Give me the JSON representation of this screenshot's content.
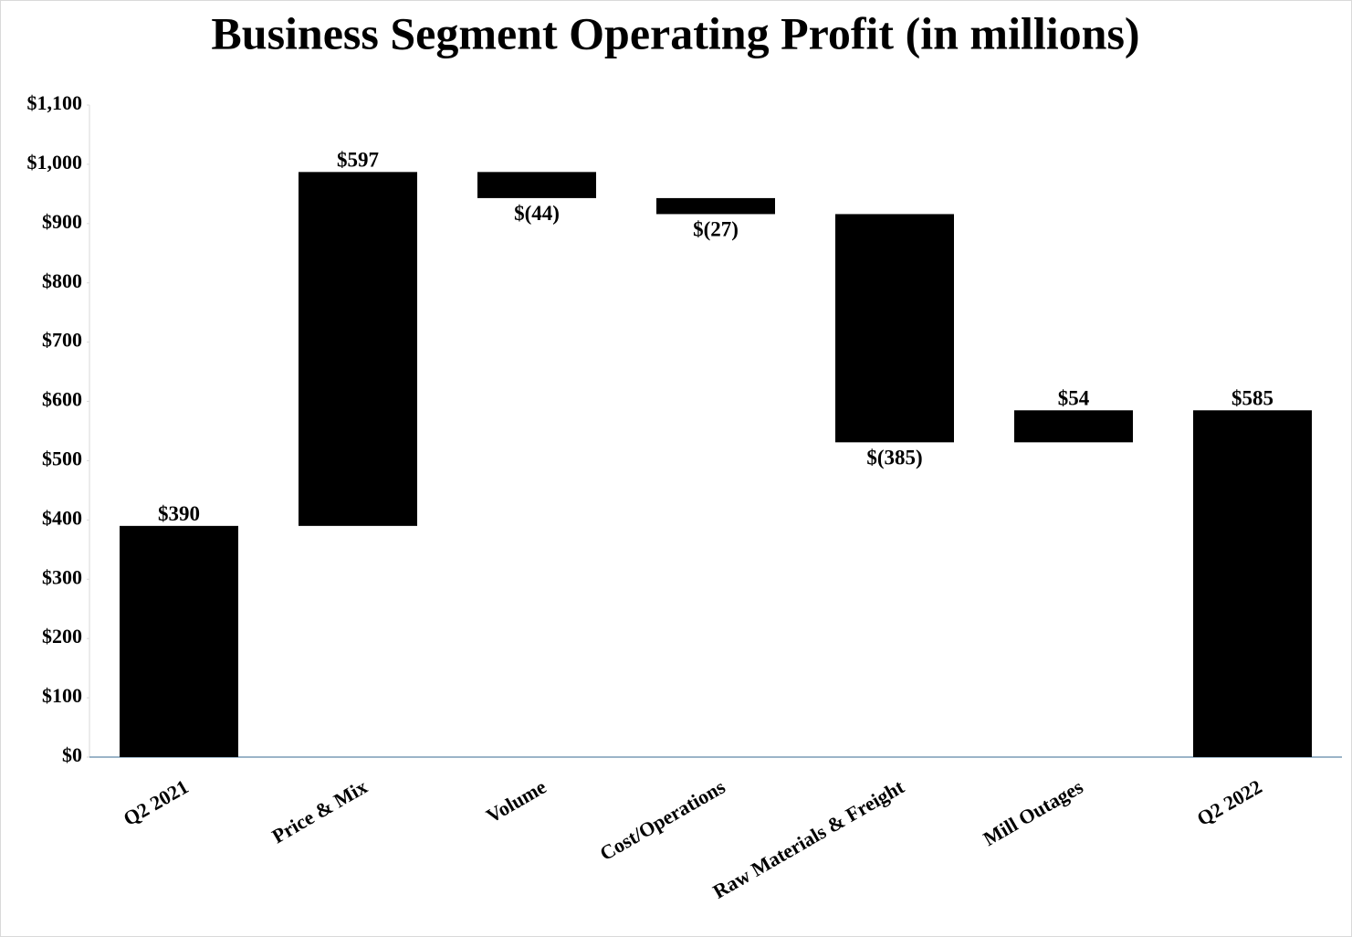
{
  "chart_data": {
    "type": "waterfall",
    "title": "Business Segment Operating Profit (in millions)",
    "categories": [
      "Q2 2021",
      "Price & Mix",
      "Volume",
      "Cost/Operations",
      "Raw Materials & Freight",
      "Mill Outages",
      "Q2 2022"
    ],
    "values": [
      390,
      597,
      -44,
      -27,
      -385,
      54,
      585
    ],
    "value_labels": [
      "$390",
      "$597",
      "$(44)",
      "$(27)",
      "$(385)",
      "$54",
      "$585"
    ],
    "color": "#000000",
    "ylim": [
      0,
      1100
    ],
    "yticks": [
      {
        "value": 0,
        "label": "$0"
      },
      {
        "value": 100,
        "label": "$100"
      },
      {
        "value": 200,
        "label": "$200"
      },
      {
        "value": 300,
        "label": "$300"
      },
      {
        "value": 400,
        "label": "$400"
      },
      {
        "value": 500,
        "label": "$500"
      },
      {
        "value": 600,
        "label": "$600"
      },
      {
        "value": 700,
        "label": "$700"
      },
      {
        "value": 800,
        "label": "$800"
      },
      {
        "value": 900,
        "label": "$900"
      },
      {
        "value": 1000,
        "label": "$1,000"
      },
      {
        "value": 1100,
        "label": "$1,100"
      }
    ],
    "grid": false
  }
}
